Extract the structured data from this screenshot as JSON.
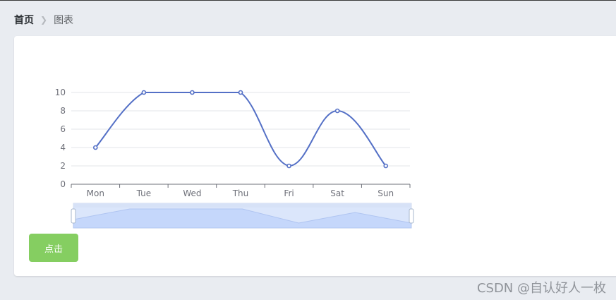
{
  "breadcrumb": {
    "home": "首页",
    "separator_icon": "chevron-right-icon",
    "current": "图表"
  },
  "button": {
    "label": "点击"
  },
  "watermark": "CSDN @自认好人一枚",
  "chart_data": {
    "type": "line",
    "smooth": true,
    "categories": [
      "Mon",
      "Tue",
      "Wed",
      "Thu",
      "Fri",
      "Sat",
      "Sun"
    ],
    "series": [
      {
        "values": [
          4,
          10,
          10,
          10,
          2,
          8,
          2
        ]
      }
    ],
    "ylim": [
      0,
      10
    ],
    "yticks": [
      0,
      2,
      4,
      6,
      8,
      10
    ],
    "grid": true,
    "line_color": "#5470c6",
    "data_zoom": {
      "range_start": 0,
      "range_end": 1
    }
  },
  "colors": {
    "button_bg": "#85ce61",
    "line": "#5470c6",
    "page_bg": "#e9ecf1"
  }
}
